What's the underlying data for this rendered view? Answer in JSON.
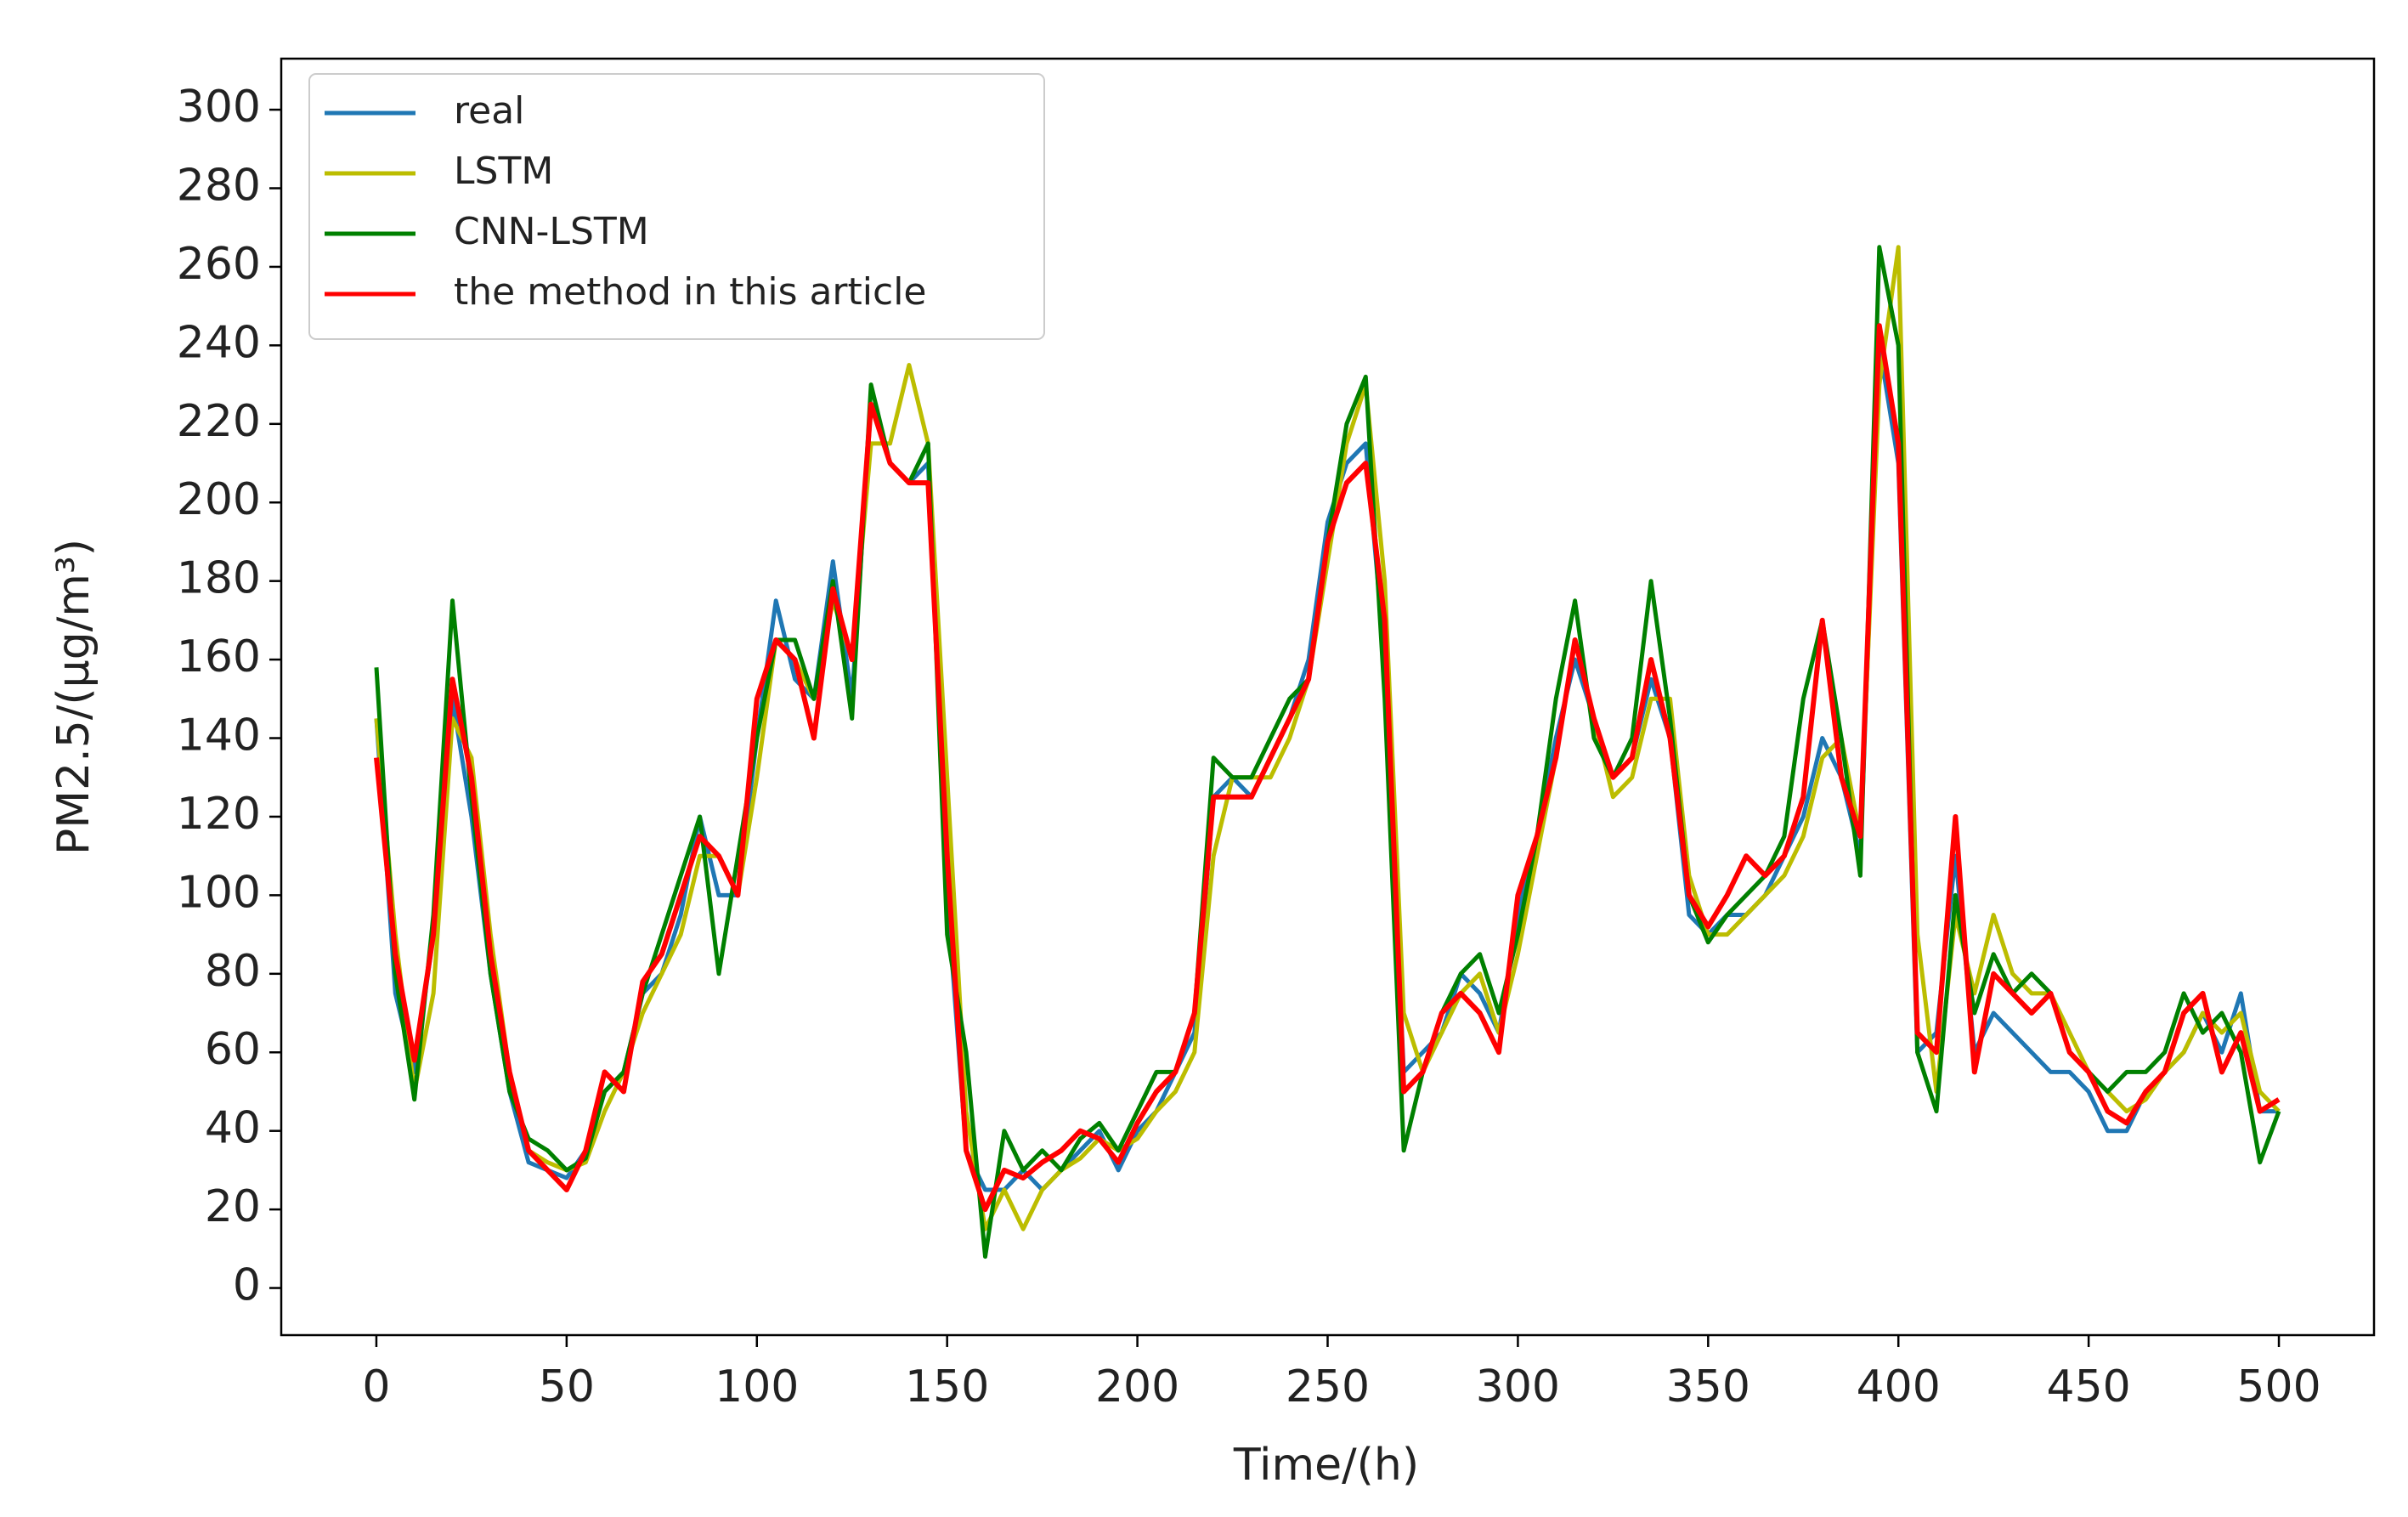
{
  "chart_data": {
    "type": "line",
    "xlabel": "Time/(h)",
    "ylabel": "PM2.5/(μg/m³)",
    "xlim": [
      -25,
      525
    ],
    "xticks": [
      0,
      50,
      100,
      150,
      200,
      250,
      300,
      350,
      400,
      450,
      500
    ],
    "ylim": [
      -12,
      313
    ],
    "yticks": [
      0,
      20,
      40,
      60,
      80,
      100,
      120,
      140,
      160,
      180,
      200,
      220,
      240,
      260,
      280,
      300
    ],
    "grid": false,
    "legend": "upper left",
    "x": [
      0,
      5,
      10,
      15,
      20,
      25,
      30,
      35,
      40,
      45,
      50,
      55,
      60,
      65,
      70,
      75,
      80,
      85,
      90,
      95,
      100,
      105,
      110,
      115,
      120,
      125,
      130,
      135,
      140,
      145,
      150,
      155,
      160,
      165,
      170,
      175,
      180,
      185,
      190,
      195,
      200,
      205,
      210,
      215,
      220,
      225,
      230,
      235,
      240,
      245,
      250,
      255,
      260,
      265,
      270,
      275,
      280,
      285,
      290,
      295,
      300,
      305,
      310,
      315,
      320,
      325,
      330,
      335,
      340,
      345,
      350,
      355,
      360,
      365,
      370,
      375,
      380,
      385,
      390,
      395,
      400,
      405,
      410,
      415,
      420,
      425,
      430,
      435,
      440,
      445,
      450,
      455,
      460,
      465,
      470,
      475,
      480,
      485,
      490,
      495,
      500
    ],
    "series": [
      {
        "name": "real",
        "color": "#1f77b4",
        "values": [
          145,
          75,
          55,
          90,
          150,
          120,
          80,
          50,
          32,
          30,
          28,
          35,
          50,
          55,
          75,
          80,
          95,
          120,
          100,
          100,
          140,
          175,
          155,
          150,
          185,
          150,
          225,
          210,
          205,
          210,
          100,
          35,
          25,
          25,
          30,
          25,
          30,
          35,
          40,
          30,
          40,
          45,
          55,
          65,
          125,
          130,
          125,
          135,
          145,
          160,
          195,
          210,
          215,
          160,
          55,
          60,
          65,
          80,
          75,
          65,
          95,
          115,
          140,
          160,
          145,
          130,
          135,
          155,
          140,
          95,
          90,
          95,
          95,
          100,
          110,
          120,
          140,
          130,
          110,
          240,
          210,
          60,
          65,
          110,
          60,
          70,
          65,
          60,
          55,
          55,
          50,
          40,
          40,
          50,
          55,
          60,
          70,
          60,
          75,
          45,
          45
        ]
      },
      {
        "name": "LSTM",
        "color": "#bcbd00",
        "values": [
          145,
          90,
          50,
          75,
          145,
          135,
          90,
          55,
          35,
          32,
          30,
          32,
          45,
          55,
          70,
          80,
          90,
          110,
          110,
          100,
          130,
          165,
          160,
          150,
          175,
          160,
          215,
          215,
          235,
          215,
          130,
          45,
          15,
          25,
          15,
          25,
          30,
          33,
          38,
          35,
          38,
          45,
          50,
          60,
          110,
          130,
          130,
          130,
          140,
          155,
          185,
          215,
          230,
          180,
          70,
          55,
          65,
          75,
          80,
          65,
          85,
          110,
          135,
          165,
          145,
          125,
          130,
          150,
          150,
          105,
          90,
          90,
          95,
          100,
          105,
          115,
          135,
          140,
          115,
          230,
          265,
          90,
          50,
          95,
          75,
          95,
          80,
          75,
          75,
          65,
          55,
          50,
          45,
          48,
          55,
          60,
          70,
          65,
          70,
          50,
          45
        ]
      },
      {
        "name": "CNN-LSTM",
        "color": "#008000",
        "values": [
          158,
          80,
          48,
          95,
          175,
          125,
          80,
          50,
          38,
          35,
          30,
          33,
          50,
          55,
          75,
          90,
          105,
          120,
          80,
          110,
          140,
          165,
          165,
          150,
          180,
          145,
          230,
          210,
          205,
          215,
          90,
          60,
          8,
          40,
          30,
          35,
          30,
          38,
          42,
          35,
          45,
          55,
          55,
          70,
          135,
          130,
          130,
          140,
          150,
          155,
          190,
          220,
          232,
          150,
          35,
          55,
          70,
          80,
          85,
          70,
          90,
          115,
          150,
          175,
          140,
          130,
          140,
          180,
          145,
          100,
          88,
          95,
          100,
          105,
          115,
          150,
          170,
          140,
          105,
          265,
          240,
          60,
          45,
          100,
          70,
          85,
          75,
          80,
          75,
          60,
          55,
          50,
          55,
          55,
          60,
          75,
          65,
          70,
          60,
          32,
          45
        ]
      },
      {
        "name": "the method in this article",
        "color": "#ff0000",
        "values": [
          135,
          85,
          58,
          90,
          155,
          130,
          85,
          55,
          35,
          30,
          25,
          35,
          55,
          50,
          78,
          85,
          100,
          115,
          110,
          100,
          150,
          165,
          160,
          140,
          178,
          160,
          225,
          210,
          205,
          205,
          110,
          35,
          20,
          30,
          28,
          32,
          35,
          40,
          38,
          32,
          42,
          50,
          55,
          70,
          125,
          125,
          125,
          135,
          145,
          155,
          190,
          205,
          210,
          170,
          50,
          55,
          70,
          75,
          70,
          60,
          100,
          115,
          135,
          165,
          145,
          130,
          135,
          160,
          140,
          100,
          92,
          100,
          110,
          105,
          110,
          125,
          170,
          130,
          115,
          245,
          215,
          65,
          60,
          120,
          55,
          80,
          75,
          70,
          75,
          60,
          55,
          45,
          42,
          50,
          55,
          70,
          75,
          55,
          65,
          45,
          48
        ]
      }
    ]
  }
}
